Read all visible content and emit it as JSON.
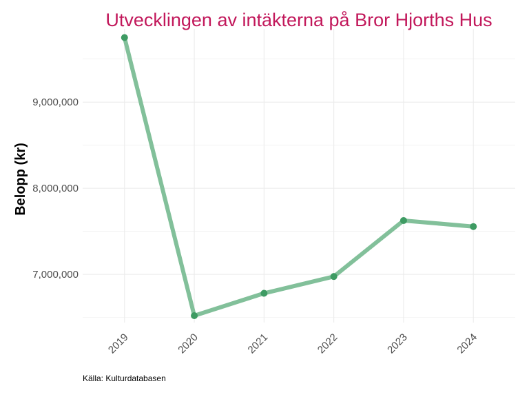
{
  "chart_data": {
    "type": "line",
    "title": "Utvecklingen av intäkterna på Bror Hjorths Hus",
    "xlabel": "",
    "ylabel": "Belopp (kr)",
    "categories": [
      "2019",
      "2020",
      "2021",
      "2022",
      "2023",
      "2024"
    ],
    "series": [
      {
        "values": [
          9750000,
          6520000,
          6780000,
          6975000,
          7625000,
          7555000
        ]
      }
    ],
    "yticks": [
      7000000,
      8000000,
      9000000
    ],
    "ytick_labels": [
      "7,000,000",
      "8,000,000",
      "9,000,000"
    ],
    "ylim": [
      6440000,
      9850000
    ],
    "grid": true,
    "legend": "none",
    "caption": "Källa: Kulturdatabasen"
  },
  "colors": {
    "title": "#c2185b",
    "line": "#82c09a",
    "point": "#3e9b63",
    "grid": "#ebebeb"
  }
}
